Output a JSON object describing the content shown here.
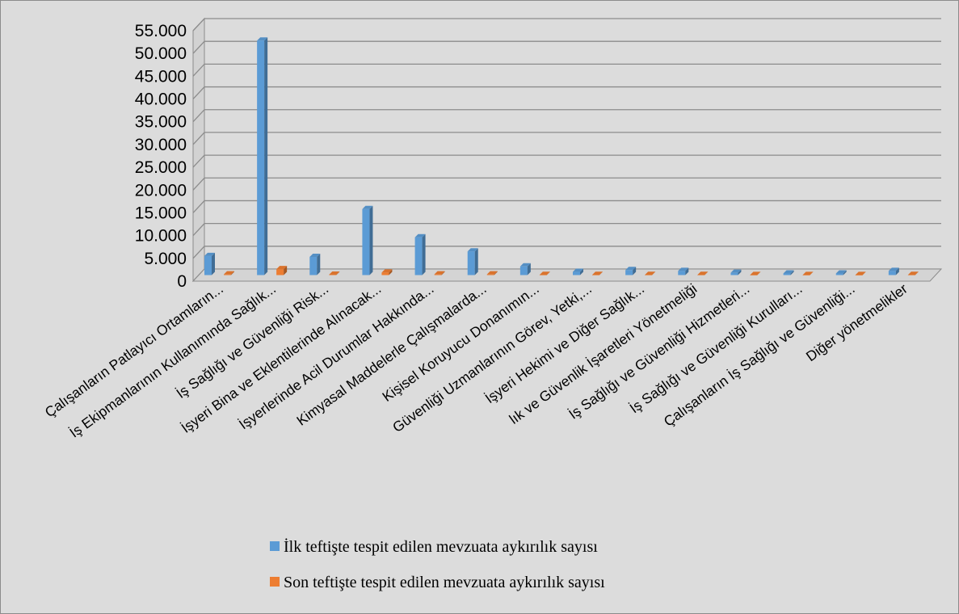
{
  "chart_data": {
    "type": "bar",
    "title": "",
    "xlabel": "",
    "ylabel": "",
    "ylim": [
      0,
      55000
    ],
    "ytick_values": [
      0,
      5000,
      10000,
      15000,
      20000,
      25000,
      30000,
      35000,
      40000,
      45000,
      50000,
      55000
    ],
    "ytick_labels": [
      "0",
      "5.000",
      "10.000",
      "15.000",
      "20.000",
      "25.000",
      "30.000",
      "35.000",
      "40.000",
      "45.000",
      "50.000",
      "55.000"
    ],
    "grid": true,
    "legend_position": "bottom",
    "categories": [
      "Çalışanların Patlayıcı Ortamların...",
      "İş Ekipmanlarının Kullanımında Sağlık...",
      "İş Sağlığı ve Güvenliği Risk...",
      "İşyeri Bina ve Eklentilerinde Alınacak...",
      "İşyerlerinde Acil Durumlar Hakkında...",
      "Kimyasal Maddelerle Çalışmalarda...",
      "Kişisel Koruyucu Donanımın...",
      "Güvenliği Uzmanlarının Görev, Yetki,...",
      "İşyeri Hekimi ve Diğer Sağlık...",
      "lık ve Güvenlik İşaretleri Yönetmeliği",
      "İş Sağlığı ve Güvenliği Hizmetleri...",
      "İş Sağlığı ve Güvenliği Kurulları...",
      "Çalışanların İş Sağlığı ve Güvenliği...",
      "Diğer yönetmelikler"
    ],
    "series": [
      {
        "name": "İlk teftişte tespit edilen mevzuata aykırılık sayısı",
        "color": "#5b9bd5",
        "values": [
          4200,
          51500,
          4000,
          14500,
          8300,
          5200,
          1900,
          700,
          1100,
          900,
          500,
          350,
          350,
          900
        ]
      },
      {
        "name": "Son teftişte tespit edilen mevzuata aykırılık sayısı",
        "color": "#ed7d31",
        "values": [
          150,
          1300,
          80,
          550,
          150,
          150,
          50,
          50,
          50,
          50,
          30,
          30,
          20,
          50
        ]
      }
    ]
  }
}
